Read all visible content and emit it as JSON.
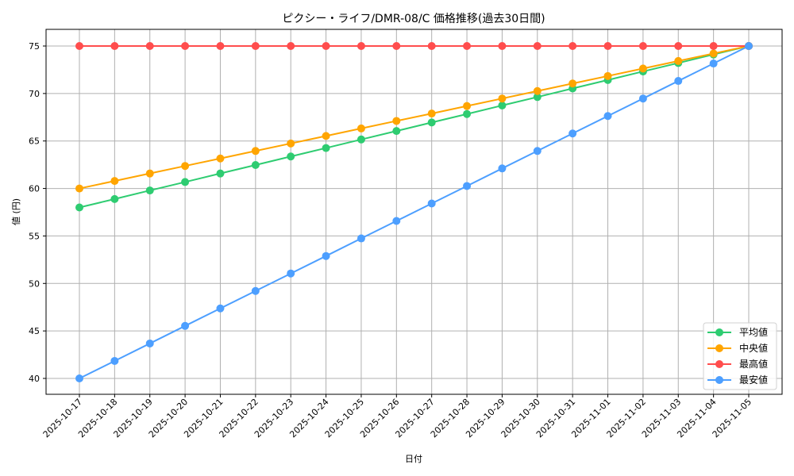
{
  "chart_data": {
    "type": "line",
    "title": "ピクシー・ライフ/DMR-08/C 価格推移(過去30日間)",
    "xlabel": "日付",
    "ylabel": "値 (円)",
    "ylim": [
      38.25,
      76.75
    ],
    "yticks": [
      40,
      45,
      50,
      55,
      60,
      65,
      70,
      75
    ],
    "grid": true,
    "legend_position": "lower right",
    "categories": [
      "2025-10-17",
      "2025-10-18",
      "2025-10-19",
      "2025-10-20",
      "2025-10-21",
      "2025-10-22",
      "2025-10-23",
      "2025-10-24",
      "2025-10-25",
      "2025-10-26",
      "2025-10-27",
      "2025-10-28",
      "2025-10-29",
      "2025-10-30",
      "2025-10-31",
      "2025-11-01",
      "2025-11-02",
      "2025-11-03",
      "2025-11-04",
      "2025-11-05"
    ],
    "series": [
      {
        "name": "平均値",
        "color": "#2ecc71",
        "values": [
          58.0,
          58.89,
          59.79,
          60.68,
          61.58,
          62.47,
          63.37,
          64.26,
          65.16,
          66.05,
          66.95,
          67.84,
          68.74,
          69.63,
          70.53,
          71.42,
          72.32,
          73.21,
          74.11,
          75.0
        ]
      },
      {
        "name": "中央値",
        "color": "#ffa500",
        "values": [
          60.0,
          60.79,
          61.58,
          62.37,
          63.16,
          63.95,
          64.74,
          65.53,
          66.32,
          67.11,
          67.89,
          68.68,
          69.47,
          70.26,
          71.05,
          71.84,
          72.63,
          73.42,
          74.21,
          75.0
        ]
      },
      {
        "name": "最高値",
        "color": "#ff4d4d",
        "values": [
          75,
          75,
          75,
          75,
          75,
          75,
          75,
          75,
          75,
          75,
          75,
          75,
          75,
          75,
          75,
          75,
          75,
          75,
          75,
          75
        ]
      },
      {
        "name": "最安値",
        "color": "#4d9fff",
        "values": [
          40.0,
          41.84,
          43.68,
          45.53,
          47.37,
          49.21,
          51.05,
          52.89,
          54.74,
          56.58,
          58.42,
          60.26,
          62.11,
          63.95,
          65.79,
          67.63,
          69.47,
          71.32,
          73.16,
          75.0
        ]
      }
    ]
  }
}
